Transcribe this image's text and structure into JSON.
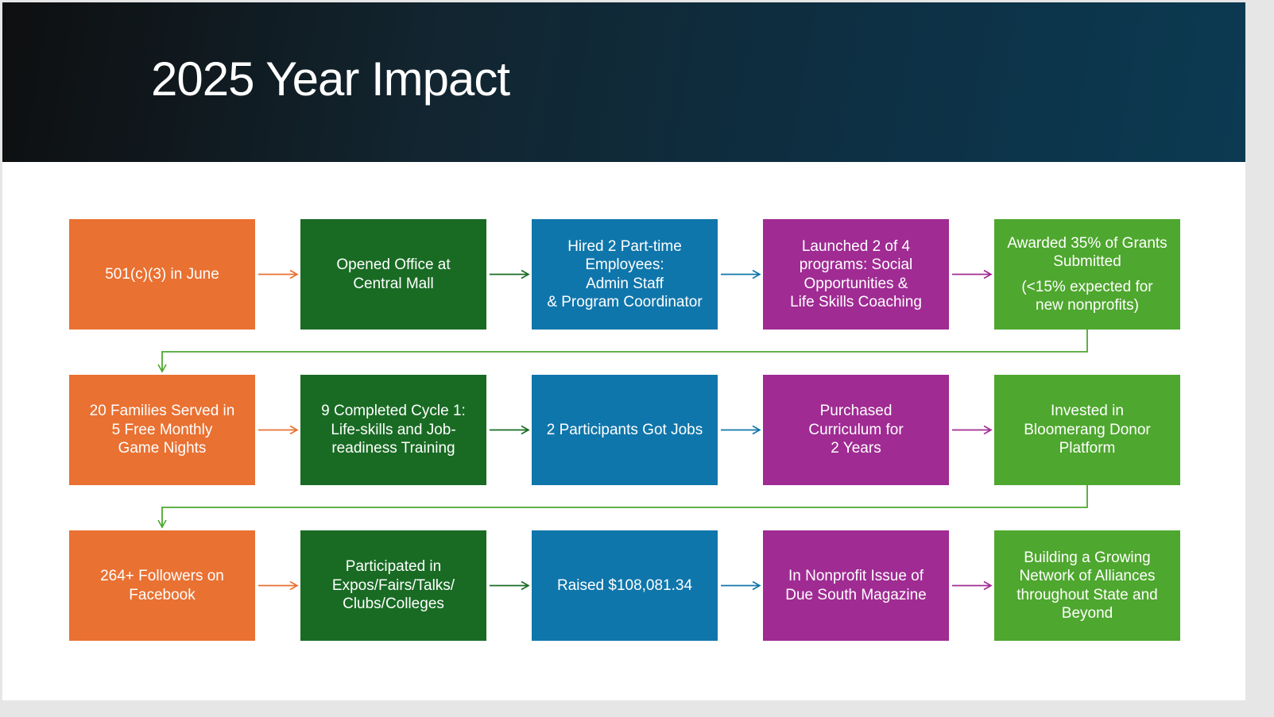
{
  "title": "2025 Year Impact",
  "colors": {
    "orange": "#e97132",
    "dark_green": "#196b24",
    "blue": "#0f76ab",
    "purple": "#a02b93",
    "light_green": "#4ea72e"
  },
  "rows": [
    [
      {
        "text": "501(c)(3) in June"
      },
      {
        "text": "Opened Office at\nCentral Mall"
      },
      {
        "text": "Hired 2 Part-time\nEmployees:\nAdmin  Staff\n& Program Coordinator"
      },
      {
        "text": "Launched 2 of 4\nprograms: Social\nOpportunities &\nLife Skills Coaching"
      },
      {
        "text": "Awarded 35% of Grants\nSubmitted",
        "note": "(<15% expected for\nnew nonprofits)"
      }
    ],
    [
      {
        "text": "20 Families Served in\n5 Free Monthly\nGame Nights"
      },
      {
        "text": "9 Completed Cycle 1:\nLife-skills and Job-\nreadiness Training"
      },
      {
        "text": "2 Participants Got Jobs"
      },
      {
        "text": "Purchased\nCurriculum for\n2 Years"
      },
      {
        "text": "Invested in\nBloomerang Donor\nPlatform"
      }
    ],
    [
      {
        "text": "264+ Followers on\nFacebook"
      },
      {
        "text": "Participated in\nExpos/Fairs/Talks/\nClubs/Colleges"
      },
      {
        "text": "Raised $108,081.34"
      },
      {
        "text": "In Nonprofit Issue of\nDue South Magazine"
      },
      {
        "text": "Building a Growing\nNetwork of Alliances\nthroughout State and\nBeyond"
      }
    ]
  ]
}
